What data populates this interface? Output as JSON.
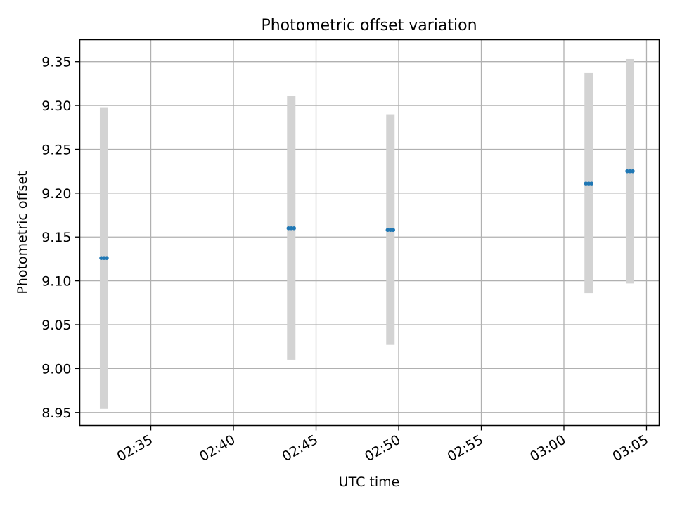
{
  "chart_data": {
    "type": "scatter",
    "title": "Photometric offset variation",
    "xlabel": "UTC time",
    "ylabel": "Photometric offset",
    "x_axis": {
      "kind": "time",
      "range": [
        "02:30:42",
        "03:05:46"
      ],
      "ticks": [
        "02:35",
        "02:40",
        "02:45",
        "02:50",
        "02:55",
        "03:00",
        "03:05"
      ]
    },
    "y_axis": {
      "range": [
        8.935,
        9.375
      ],
      "ticks": [
        "8.95",
        "9.00",
        "9.05",
        "9.10",
        "9.15",
        "9.20",
        "9.25",
        "9.30",
        "9.35"
      ]
    },
    "grid": true,
    "errorbar_color": "#d3d3d3",
    "point_color": "#1f77b4",
    "groups": [
      {
        "x": [
          "02:32:00",
          "02:32:10",
          "02:32:20"
        ],
        "y": 9.126,
        "yerr_low": 8.954,
        "yerr_high": 9.298
      },
      {
        "x": [
          "02:43:20",
          "02:43:30",
          "02:43:40"
        ],
        "y": 9.16,
        "yerr_low": 9.01,
        "yerr_high": 9.311
      },
      {
        "x": [
          "02:49:20",
          "02:49:30",
          "02:49:40"
        ],
        "y": 9.158,
        "yerr_low": 9.027,
        "yerr_high": 9.29
      },
      {
        "x": [
          "03:01:20",
          "03:01:30",
          "03:01:40"
        ],
        "y": 9.211,
        "yerr_low": 9.086,
        "yerr_high": 9.337
      },
      {
        "x": [
          "03:03:50",
          "03:04:00",
          "03:04:10"
        ],
        "y": 9.225,
        "yerr_low": 9.097,
        "yerr_high": 9.353
      }
    ]
  }
}
